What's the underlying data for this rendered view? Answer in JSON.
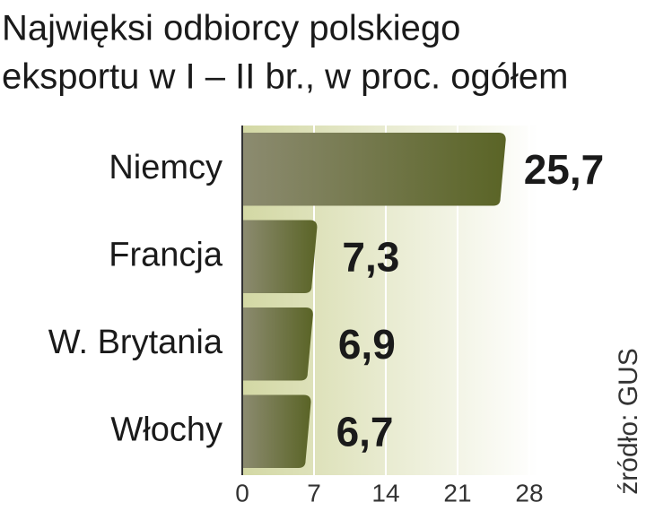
{
  "chart_data": {
    "type": "bar",
    "orientation": "horizontal",
    "title": [
      "Najwięksi odbiorcy polskiego",
      "eksportu w I – II br., w proc. ogółem"
    ],
    "categories": [
      "Niemcy",
      "Francja",
      "W. Brytania",
      "Włochy"
    ],
    "values": [
      25.7,
      7.3,
      6.9,
      6.7
    ],
    "value_labels": [
      "25,7",
      "7,3",
      "6,9",
      "6,7"
    ],
    "value_label_colors": [
      "#c0143c",
      "#111111",
      "#111111",
      "#111111"
    ],
    "color": [
      "#8c8b70",
      "#5a6426"
    ],
    "xlim": [
      0,
      28
    ],
    "xticks": [
      0,
      7,
      14,
      21,
      28
    ],
    "grid": true,
    "source": "źródło: GUS"
  }
}
